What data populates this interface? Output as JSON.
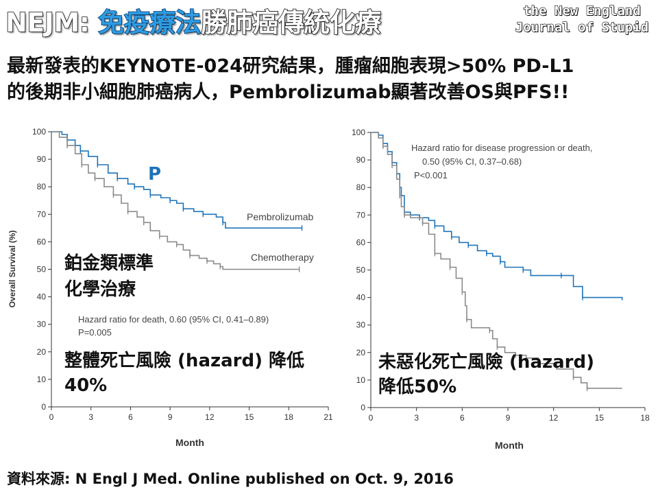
{
  "header": {
    "title_prefix": "NEJM: ",
    "title_highlight": "免疫療法",
    "title_suffix": "勝肺癌傳統化療",
    "logo_line1": "the New England",
    "logo_line2": "Journal of Stupid"
  },
  "subtitle": {
    "line1": "最新發表的KEYNOTE-024研究結果，腫瘤細胞表現>50% PD-L1",
    "line2": "的後期非小細胞肺癌病人，Pembrolizumab顯著改善OS與PFS!!"
  },
  "footer": {
    "source": "資料來源: N Engl J Med. Online published on Oct. 9, 2016"
  },
  "colors": {
    "pembro": "#1e73b8",
    "chemo": "#8a8a8a",
    "accent": "#1e73b8"
  },
  "chart_data": [
    {
      "type": "line",
      "xlabel": "Month",
      "ylabel": "Overall Survival (%)",
      "xlim": [
        0,
        21
      ],
      "ylim": [
        0,
        100
      ],
      "xticks": [
        0,
        3,
        6,
        9,
        12,
        15,
        18,
        21
      ],
      "yticks": [
        0,
        10,
        20,
        30,
        40,
        50,
        60,
        70,
        80,
        90,
        100
      ],
      "series": [
        {
          "name": "Pembrolizumab",
          "color": "#1e73b8",
          "points": [
            [
              0,
              100
            ],
            [
              0.8,
              99
            ],
            [
              1.2,
              97
            ],
            [
              1.8,
              95
            ],
            [
              2.2,
              93
            ],
            [
              2.8,
              91
            ],
            [
              3.5,
              88
            ],
            [
              4.3,
              85
            ],
            [
              5,
              83
            ],
            [
              5.8,
              81
            ],
            [
              6.3,
              80
            ],
            [
              7,
              79
            ],
            [
              7.5,
              77
            ],
            [
              8.3,
              76
            ],
            [
              9,
              75
            ],
            [
              9.5,
              74
            ],
            [
              10,
              72
            ],
            [
              10.8,
              71
            ],
            [
              11.5,
              70
            ],
            [
              12.5,
              69
            ],
            [
              13,
              67
            ],
            [
              13.2,
              65
            ],
            [
              19,
              65
            ]
          ]
        },
        {
          "name": "Chemotherapy",
          "color": "#8a8a8a",
          "points": [
            [
              0,
              100
            ],
            [
              0.6,
              98
            ],
            [
              1.2,
              95
            ],
            [
              1.8,
              92
            ],
            [
              2.3,
              88
            ],
            [
              2.8,
              85
            ],
            [
              3.3,
              83
            ],
            [
              4,
              80
            ],
            [
              4.7,
              77
            ],
            [
              5.3,
              74
            ],
            [
              5.8,
              71
            ],
            [
              6.5,
              69
            ],
            [
              7,
              67
            ],
            [
              7.5,
              64
            ],
            [
              8.2,
              62
            ],
            [
              8.8,
              60
            ],
            [
              9.5,
              59
            ],
            [
              10,
              57
            ],
            [
              10.5,
              55
            ],
            [
              11.2,
              54
            ],
            [
              11.8,
              53
            ],
            [
              12.3,
              52
            ],
            [
              12.8,
              51
            ],
            [
              13,
              50
            ],
            [
              18.8,
              50
            ]
          ]
        }
      ],
      "annotations": {
        "pembro_label": "Pembrolizumab",
        "chemo_label": "Chemotherapy",
        "p_marker": "P",
        "hazard_line1": "Hazard ratio for death, 0.60 (95% CI, 0.41–0.89)",
        "hazard_line2": "P=0.005",
        "regimen_line1": "鉑金類標準",
        "regimen_line2": "化學治療",
        "summary_line1": "整體死亡風險 (hazard) 降低",
        "summary_line2": "40%"
      }
    },
    {
      "type": "line",
      "xlabel": "Month",
      "ylabel": "",
      "xlim": [
        0,
        18
      ],
      "ylim": [
        0,
        100
      ],
      "xticks": [
        0,
        3,
        6,
        9,
        12,
        15,
        18
      ],
      "yticks": [
        0,
        10,
        20,
        30,
        40,
        50,
        60,
        70,
        80,
        90,
        100
      ],
      "series": [
        {
          "name": "",
          "color": "#1e73b8",
          "points": [
            [
              0,
              100
            ],
            [
              0.5,
              99
            ],
            [
              0.8,
              96
            ],
            [
              1.1,
              93
            ],
            [
              1.4,
              89
            ],
            [
              1.7,
              85
            ],
            [
              1.9,
              80
            ],
            [
              2,
              77
            ],
            [
              2.2,
              71
            ],
            [
              2.6,
              70
            ],
            [
              3.2,
              69
            ],
            [
              3.8,
              68
            ],
            [
              4.2,
              66
            ],
            [
              4.8,
              64
            ],
            [
              5.3,
              62
            ],
            [
              5.8,
              60
            ],
            [
              6.4,
              59
            ],
            [
              7,
              57
            ],
            [
              7.6,
              56
            ],
            [
              8,
              55
            ],
            [
              8.5,
              53
            ],
            [
              8.8,
              51
            ],
            [
              10,
              50
            ],
            [
              10.5,
              48
            ],
            [
              12.5,
              48
            ],
            [
              13.3,
              44
            ],
            [
              13.9,
              40
            ],
            [
              16.5,
              39
            ]
          ]
        },
        {
          "name": "",
          "color": "#8a8a8a",
          "points": [
            [
              0,
              100
            ],
            [
              0.5,
              98
            ],
            [
              0.8,
              95
            ],
            [
              1.1,
              92
            ],
            [
              1.4,
              88
            ],
            [
              1.7,
              83
            ],
            [
              1.9,
              77
            ],
            [
              2,
              73
            ],
            [
              2.2,
              70
            ],
            [
              2.6,
              69
            ],
            [
              3.4,
              67
            ],
            [
              3.8,
              63
            ],
            [
              4.2,
              56
            ],
            [
              4.6,
              54
            ],
            [
              5.2,
              51
            ],
            [
              5.6,
              47
            ],
            [
              6,
              42
            ],
            [
              6.2,
              37
            ],
            [
              6.3,
              32
            ],
            [
              6.6,
              29
            ],
            [
              7.8,
              28
            ],
            [
              8,
              25
            ],
            [
              8.3,
              22
            ],
            [
              8.8,
              20
            ],
            [
              9.5,
              19
            ],
            [
              10.2,
              18
            ],
            [
              11,
              16
            ],
            [
              12.2,
              14
            ],
            [
              13.3,
              11
            ],
            [
              13.8,
              9
            ],
            [
              14.2,
              7
            ],
            [
              16.5,
              7
            ]
          ]
        }
      ],
      "annotations": {
        "hazard_line1": "Hazard ratio for disease progression or death,",
        "hazard_line2": "0.50 (95% CI, 0.37–0.68)",
        "hazard_line3": "P<0.001",
        "summary_line1": "未惡化死亡風險 (hazard)",
        "summary_line2": "降低50%"
      }
    }
  ]
}
